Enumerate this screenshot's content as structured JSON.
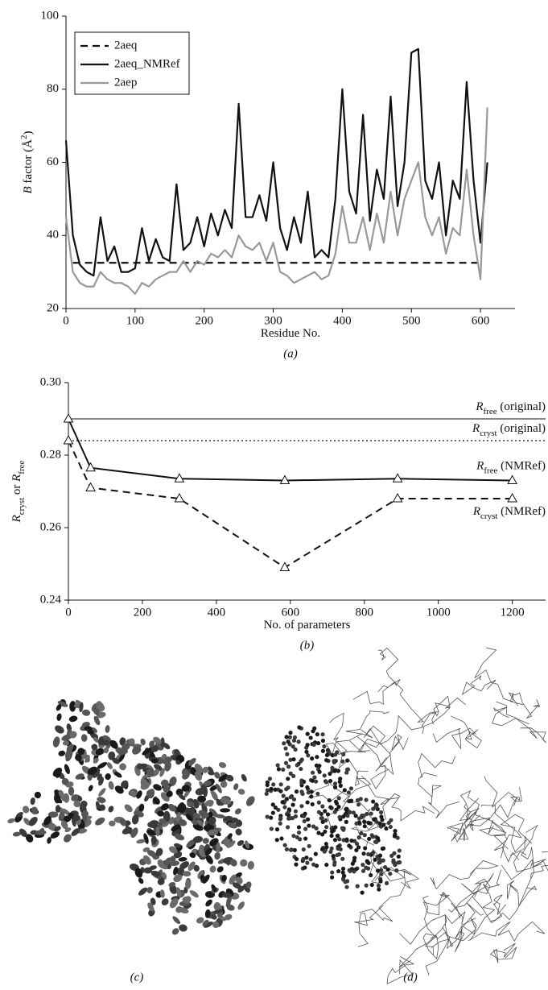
{
  "chart_data": [
    {
      "type": "line",
      "caption": "(a)",
      "x_label": {
        "parts": [
          {
            "text": "Residue No."
          }
        ]
      },
      "y_label": {
        "parts": [
          {
            "text": "B",
            "italic": true
          },
          {
            "text": " factor (Å"
          },
          {
            "text": "2",
            "sup": true
          },
          {
            "text": ")"
          }
        ]
      },
      "x": [
        0,
        10,
        20,
        30,
        40,
        50,
        60,
        70,
        80,
        90,
        100,
        110,
        120,
        130,
        140,
        150,
        160,
        170,
        180,
        190,
        200,
        210,
        220,
        230,
        240,
        250,
        260,
        270,
        280,
        290,
        300,
        310,
        320,
        330,
        340,
        350,
        360,
        370,
        380,
        390,
        400,
        410,
        420,
        430,
        440,
        450,
        460,
        470,
        480,
        490,
        500,
        510,
        520,
        530,
        540,
        550,
        560,
        570,
        580,
        590,
        600,
        610
      ],
      "series": [
        {
          "name": "2aeq",
          "color": "#111111",
          "dash": "dashed",
          "values": [
            null,
            32.5,
            32.5,
            32.5,
            32.5,
            32.5,
            32.5,
            32.5,
            32.5,
            32.5,
            32.5,
            32.5,
            32.5,
            32.5,
            32.5,
            32.5,
            32.5,
            32.5,
            32.5,
            32.5,
            32.5,
            32.5,
            32.5,
            32.5,
            32.5,
            32.5,
            32.5,
            32.5,
            32.5,
            32.5,
            32.5,
            32.5,
            32.5,
            32.5,
            32.5,
            32.5,
            32.5,
            32.5,
            32.5,
            32.5,
            32.5,
            32.5,
            32.5,
            32.5,
            32.5,
            32.5,
            32.5,
            32.5,
            32.5,
            32.5,
            32.5,
            32.5,
            32.5,
            32.5,
            32.5,
            32.5,
            32.5,
            32.5,
            32.5,
            32.5,
            32.5,
            null
          ]
        },
        {
          "name": "2aeq_NMRef",
          "color": "#111111",
          "dash": "solid",
          "values": [
            66,
            40,
            32,
            30,
            29,
            45,
            33,
            37,
            30,
            30,
            31,
            42,
            33,
            39,
            34,
            33,
            54,
            36,
            38,
            45,
            37,
            46,
            40,
            47,
            42,
            76,
            45,
            45,
            51,
            44,
            60,
            42,
            36,
            45,
            38,
            52,
            34,
            36,
            34,
            50,
            80,
            52,
            46,
            73,
            44,
            58,
            50,
            78,
            48,
            60,
            90,
            91,
            55,
            50,
            60,
            40,
            55,
            50,
            82,
            55,
            38,
            60
          ]
        },
        {
          "name": "2aep",
          "color": "#999999",
          "dash": "solid",
          "values": [
            45,
            30,
            27,
            26,
            26,
            30,
            28,
            27,
            27,
            26,
            24,
            27,
            26,
            28,
            29,
            30,
            30,
            33,
            30,
            33,
            32,
            35,
            34,
            36,
            34,
            40,
            37,
            36,
            38,
            33,
            38,
            30,
            29,
            27,
            28,
            29,
            30,
            28,
            29,
            35,
            48,
            38,
            38,
            45,
            36,
            46,
            38,
            52,
            40,
            50,
            55,
            60,
            45,
            40,
            45,
            35,
            42,
            40,
            58,
            40,
            28,
            75
          ]
        }
      ],
      "xlim": [
        0,
        650
      ],
      "xticks": [
        0,
        100,
        200,
        300,
        400,
        500,
        600
      ],
      "ylim": [
        20,
        100
      ],
      "yticks": [
        20,
        40,
        60,
        80,
        100
      ],
      "legend": "upper-left"
    },
    {
      "type": "line",
      "caption": "(b)",
      "x_label": {
        "parts": [
          {
            "text": "No. of parameters"
          }
        ]
      },
      "y_label": {
        "parts": [
          {
            "text": "R",
            "italic": true
          },
          {
            "text": "cryst",
            "sub": true
          },
          {
            "text": " or "
          },
          {
            "text": "R",
            "italic": true
          },
          {
            "text": "free",
            "sub": true
          }
        ]
      },
      "x": [
        0,
        60,
        300,
        585,
        890,
        1200
      ],
      "series": [
        {
          "label": {
            "parts": [
              {
                "text": "R",
                "italic": true
              },
              {
                "text": "free",
                "sub": true
              },
              {
                "text": " (NMRef)"
              }
            ]
          },
          "color": "#111111",
          "dash": "solid",
          "marker": "triangle",
          "label_side": "above",
          "values": [
            0.29,
            0.2765,
            0.2735,
            0.273,
            0.2735,
            0.273
          ]
        },
        {
          "label": {
            "parts": [
              {
                "text": "R",
                "italic": true
              },
              {
                "text": "cryst",
                "sub": true
              },
              {
                "text": " (NMRef)"
              }
            ]
          },
          "color": "#111111",
          "dash": "dashed",
          "marker": "triangle",
          "label_side": "below",
          "values": [
            0.284,
            0.271,
            0.268,
            0.249,
            0.268,
            0.268
          ]
        }
      ],
      "reference_lines": [
        {
          "value": 0.29,
          "dash": "solid",
          "label": {
            "parts": [
              {
                "text": "R",
                "italic": true
              },
              {
                "text": "free",
                "sub": true
              },
              {
                "text": " (original)"
              }
            ]
          }
        },
        {
          "value": 0.284,
          "dash": "dotted",
          "label": {
            "parts": [
              {
                "text": "R",
                "italic": true
              },
              {
                "text": "cryst",
                "sub": true
              },
              {
                "text": " (original)"
              }
            ]
          }
        }
      ],
      "xlim": [
        0,
        1290
      ],
      "xticks": [
        0,
        200,
        400,
        600,
        800,
        1000,
        1200
      ],
      "ylim": [
        0.24,
        0.3
      ],
      "yticks": [
        0.24,
        0.26,
        0.28,
        {
          "value": 0.3,
          "label": "0.30"
        }
      ]
    }
  ],
  "figures": [
    {
      "caption": "(c)"
    },
    {
      "caption": "(d)"
    }
  ]
}
